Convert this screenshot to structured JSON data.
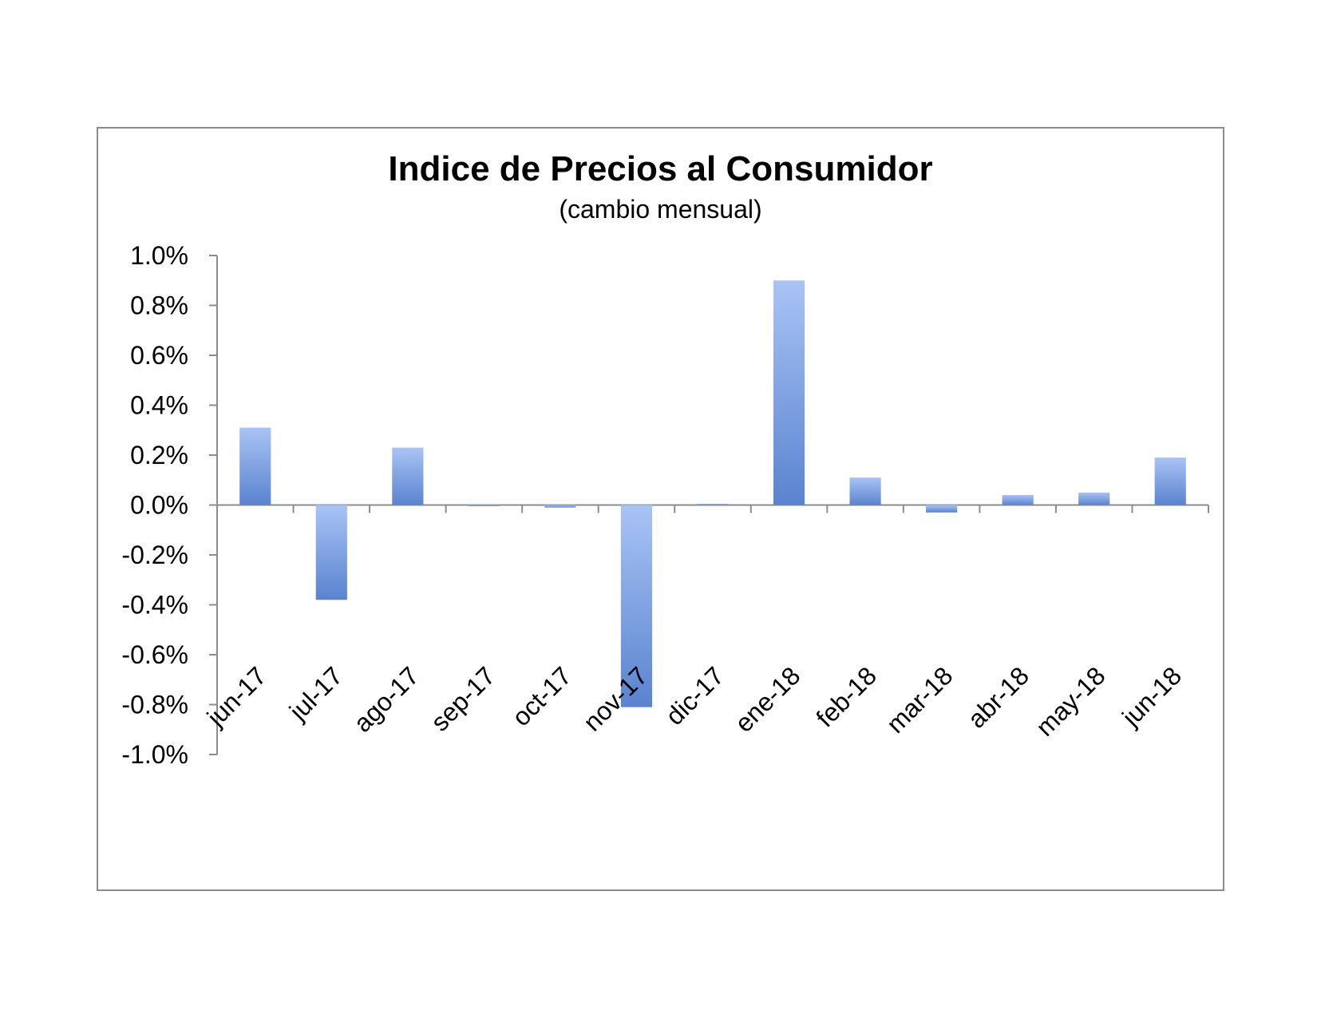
{
  "chart_data": {
    "type": "bar",
    "title": "Indice de Precios al Consumidor",
    "subtitle": "(cambio mensual)",
    "categories": [
      "jun-17",
      "jul-17",
      "ago-17",
      "sep-17",
      "oct-17",
      "nov-17",
      "dic-17",
      "ene-18",
      "feb-18",
      "mar-18",
      "abr-18",
      "may-18",
      "jun-18"
    ],
    "values": [
      0.31,
      -0.38,
      0.23,
      0.0,
      -0.01,
      -0.81,
      0.005,
      0.9,
      0.11,
      -0.03,
      0.04,
      0.05,
      0.19
    ],
    "ylim": [
      -1.0,
      1.0
    ],
    "yticks": [
      "1.0%",
      "0.8%",
      "0.6%",
      "0.4%",
      "0.2%",
      "0.0%",
      "-0.2%",
      "-0.4%",
      "-0.6%",
      "-0.8%",
      "-1.0%"
    ],
    "ytick_values": [
      1.0,
      0.8,
      0.6,
      0.4,
      0.2,
      0.0,
      -0.2,
      -0.4,
      -0.6,
      -0.8,
      -1.0
    ],
    "grid": false,
    "legend": "none",
    "colors": {
      "bar_light": "#a9c3f5",
      "bar_dark": "#5a83cf",
      "axis": "#8c8c8c"
    }
  }
}
